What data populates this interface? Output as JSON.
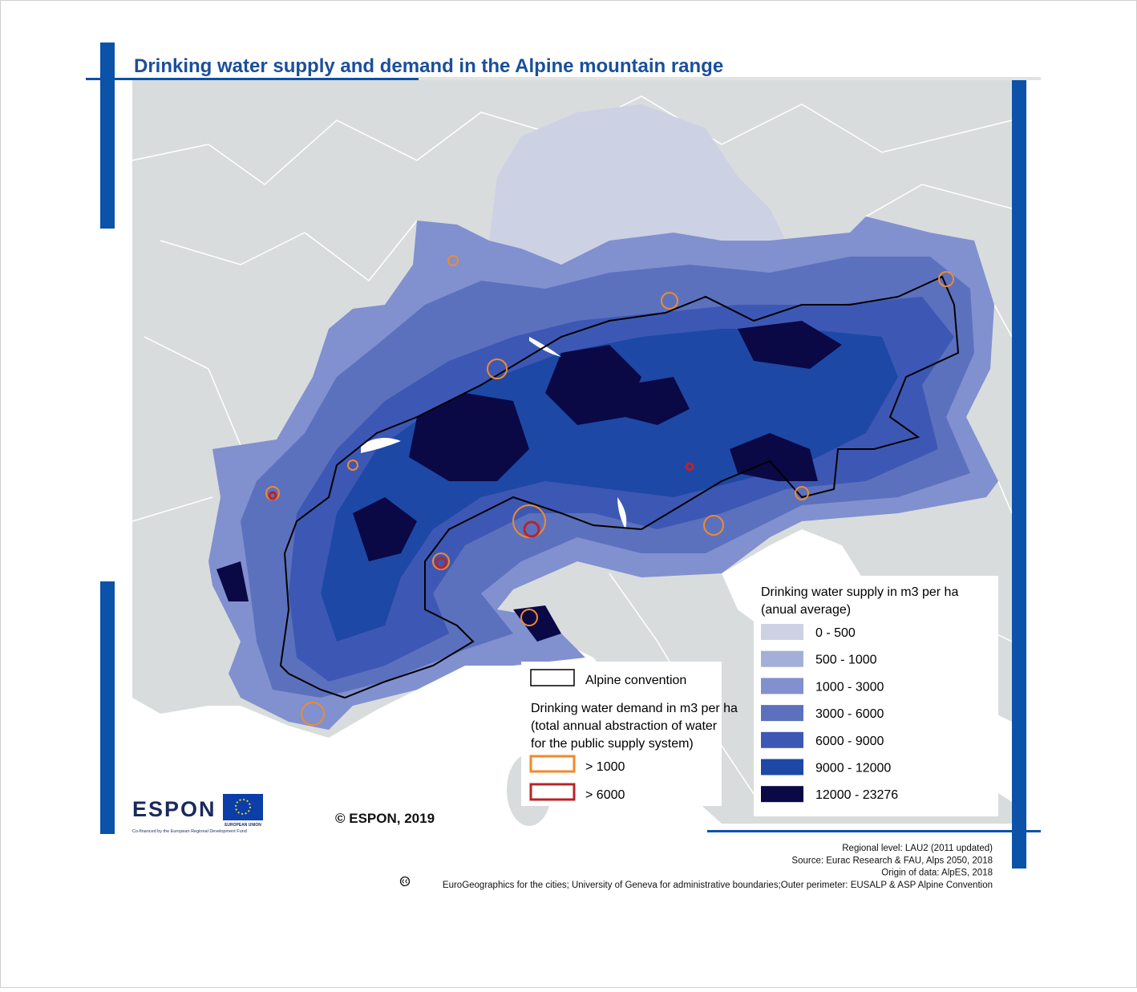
{
  "title": "Drinking water supply and demand in the Alpine mountain range",
  "legend_supply": {
    "title": "Drinking water supply in m3 per ha",
    "subtitle": "(anual average)",
    "classes": [
      {
        "label": "0 - 500",
        "color": "#cdd1e4"
      },
      {
        "label": "500 - 1000",
        "color": "#a4afd8"
      },
      {
        "label": "1000 - 3000",
        "color": "#8190cf"
      },
      {
        "label": "3000 - 6000",
        "color": "#5c71bd"
      },
      {
        "label": "6000 - 9000",
        "color": "#3d58b4"
      },
      {
        "label": "9000 - 12000",
        "color": "#1d48a6"
      },
      {
        "label": "12000 - 23276",
        "color": "#0a0845"
      }
    ]
  },
  "legend_boundary": {
    "label": "Alpine convention"
  },
  "legend_demand": {
    "title": [
      "Drinking water demand in m3 per ha",
      "(total annual abstraction of water",
      "for the public supply system)"
    ],
    "classes": [
      {
        "label": "> 1000",
        "color": "#f08a2c"
      },
      {
        "label": "> 6000",
        "color": "#b8232a"
      }
    ]
  },
  "copyright": "© ESPON, 2019",
  "logos": {
    "espon": "ESPON",
    "eu": "EUROPEAN UNION",
    "cofinanced": "Co-financed by the European Regional Development Fund"
  },
  "credits": [
    "Regional level: LAU2 (2011 updated)",
    "Source: Eurac Research & FAU, Alps 2050, 2018",
    "Origin of data: AlpES, 2018",
    "EuroGeographics for the cities; University of Geneva for administrative boundaries;Outer perimeter: EUSALP & ASP Alpine Convention"
  ]
}
